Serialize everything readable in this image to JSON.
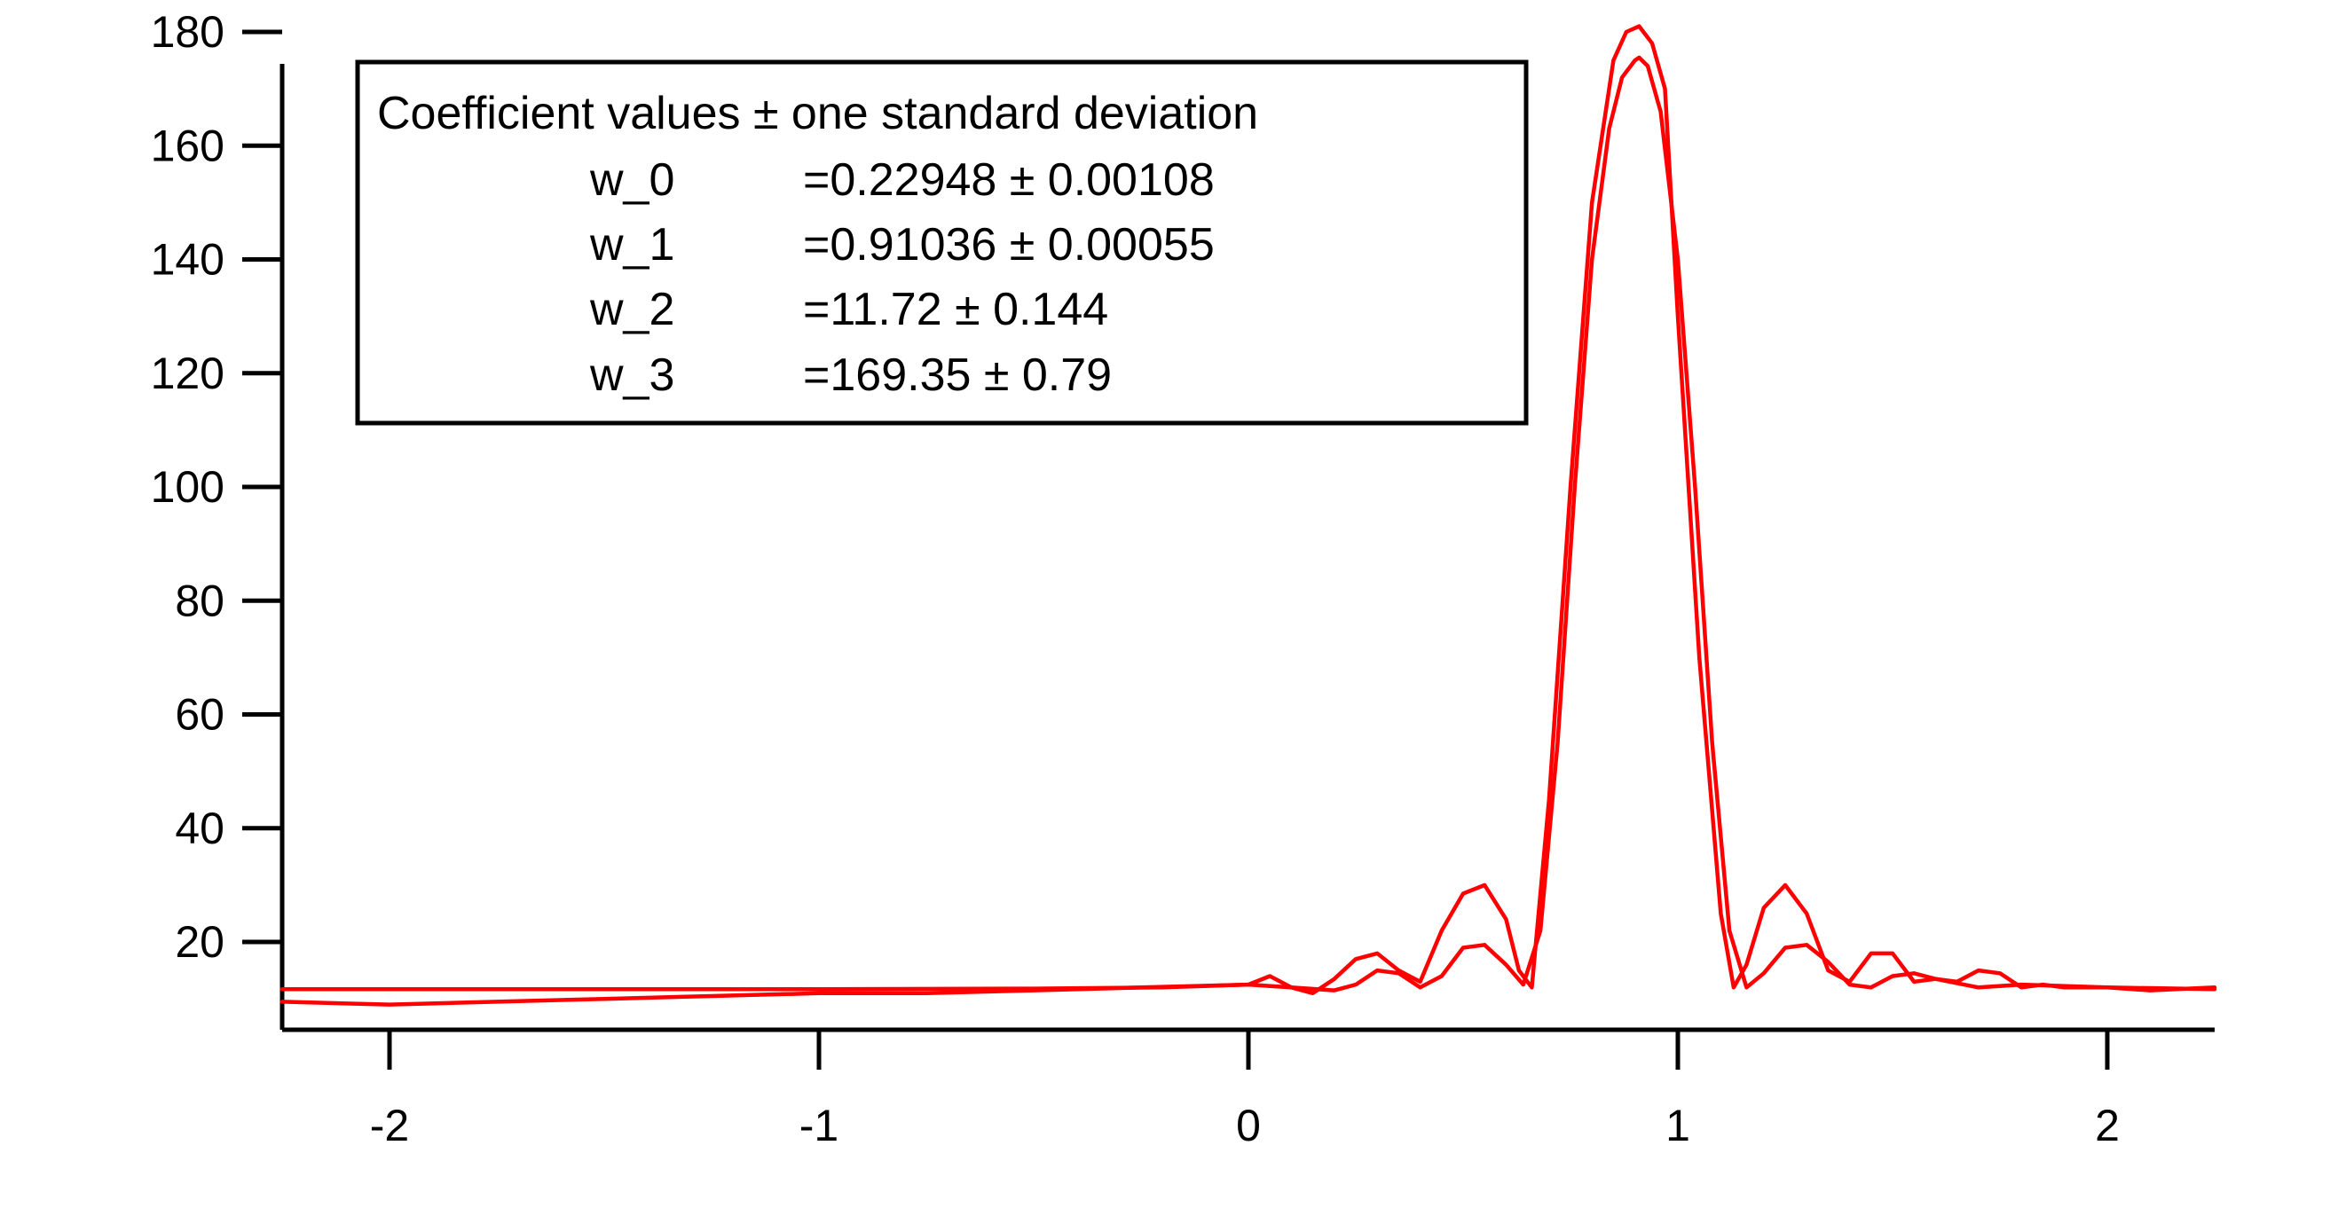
{
  "chart_data": {
    "type": "line",
    "title": "",
    "xlabel": "",
    "ylabel": "",
    "xlim": [
      -2.25,
      2.25
    ],
    "ylim": [
      8,
      180
    ],
    "x_ticks": [
      -2,
      -1,
      0,
      1,
      2
    ],
    "x_tick_labels": [
      "-2",
      "-1",
      "0",
      "1",
      "2"
    ],
    "y_ticks": [
      20,
      40,
      60,
      80,
      100,
      120,
      140,
      160,
      180
    ],
    "y_tick_labels": [
      "20",
      "40",
      "60",
      "80",
      "100",
      "120",
      "140",
      "160",
      "180"
    ],
    "grid": false,
    "line_color": "#ff0000",
    "series": [
      {
        "x": [
          -2.25,
          -2.0,
          -1.75,
          -1.5,
          -1.25,
          -1.0,
          -0.75,
          -0.5,
          -0.25,
          0.0,
          0.05,
          0.1,
          0.15,
          0.2,
          0.25,
          0.3,
          0.35,
          0.4,
          0.45,
          0.5,
          0.55,
          0.6,
          0.63,
          0.66,
          0.7,
          0.75,
          0.8,
          0.85,
          0.88,
          0.91,
          0.94,
          0.97,
          1.0,
          1.05,
          1.1,
          1.13,
          1.16,
          1.2,
          1.25,
          1.3,
          1.35,
          1.4,
          1.45,
          1.5,
          1.55,
          1.6,
          1.65,
          1.7,
          1.75,
          1.8,
          1.85,
          1.9,
          2.0,
          2.1,
          2.25
        ],
        "values": [
          9.5,
          9.0,
          9.5,
          10.0,
          10.5,
          11.0,
          11.0,
          11.5,
          12.0,
          12.5,
          14.0,
          12.0,
          11.0,
          13.5,
          17.0,
          18.0,
          15.0,
          13.0,
          22.0,
          28.5,
          30.0,
          24.0,
          15.0,
          12.0,
          45.0,
          100.0,
          150.0,
          175.0,
          180.0,
          181.0,
          178.0,
          170.0,
          130.0,
          70.0,
          25.0,
          12.0,
          16.0,
          26.0,
          30.0,
          25.0,
          15.0,
          13.0,
          18.0,
          18.0,
          13.0,
          13.5,
          13.0,
          15.0,
          14.5,
          12.0,
          12.5,
          12.0,
          12.0,
          11.5,
          12.0
        ]
      },
      {
        "x": [
          -2.25,
          -1.0,
          -0.5,
          -0.2,
          0.0,
          0.1,
          0.2,
          0.25,
          0.3,
          0.35,
          0.4,
          0.45,
          0.5,
          0.55,
          0.6,
          0.64,
          0.68,
          0.72,
          0.76,
          0.8,
          0.84,
          0.87,
          0.9,
          0.91,
          0.93,
          0.96,
          1.0,
          1.04,
          1.08,
          1.12,
          1.16,
          1.2,
          1.25,
          1.3,
          1.35,
          1.4,
          1.45,
          1.5,
          1.55,
          1.6,
          1.7,
          1.8,
          2.0,
          2.25
        ],
        "values": [
          11.7,
          11.7,
          11.8,
          12.0,
          12.5,
          12.0,
          11.5,
          12.5,
          15.0,
          14.5,
          12.0,
          14.0,
          19.0,
          19.5,
          16.0,
          12.5,
          22.0,
          55.0,
          100.0,
          140.0,
          163.0,
          172.0,
          175.0,
          175.5,
          174.0,
          166.0,
          140.0,
          100.0,
          55.0,
          22.0,
          12.0,
          14.5,
          19.0,
          19.5,
          16.5,
          12.5,
          12.0,
          14.0,
          14.5,
          13.5,
          12.0,
          12.5,
          12.0,
          11.7
        ]
      }
    ],
    "legend_box": {
      "title": "Coefficient values ± one standard deviation",
      "rows": [
        {
          "name": "w_0",
          "value": "=0.22948 ± 0.00108"
        },
        {
          "name": "w_1",
          "value": "=0.91036 ± 0.00055"
        },
        {
          "name": "w_2",
          "value": "=11.72 ± 0.144"
        },
        {
          "name": "w_3",
          "value": "=169.35 ± 0.79"
        }
      ]
    }
  }
}
